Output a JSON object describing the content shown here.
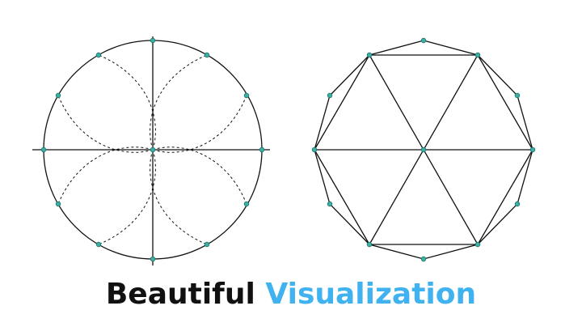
{
  "title": {
    "part1": "Beautiful",
    "part2": "Visualization"
  },
  "colors": {
    "title_primary": "#111111",
    "title_accent": "#3fb2ef",
    "line": "#111111",
    "point_fill": "#3ab0a5",
    "point_stroke": "#1f6f6a"
  },
  "diagrams": [
    {
      "name": "circle-with-dashed-petals",
      "points_around_circle": 12,
      "center_point": true,
      "axes": true,
      "dashed_arcs": true
    },
    {
      "name": "dodecagon-with-hexagram-triangles",
      "points_around_polygon": 12,
      "center_point": true,
      "polygon_sides": 12,
      "triangles": 6
    }
  ]
}
